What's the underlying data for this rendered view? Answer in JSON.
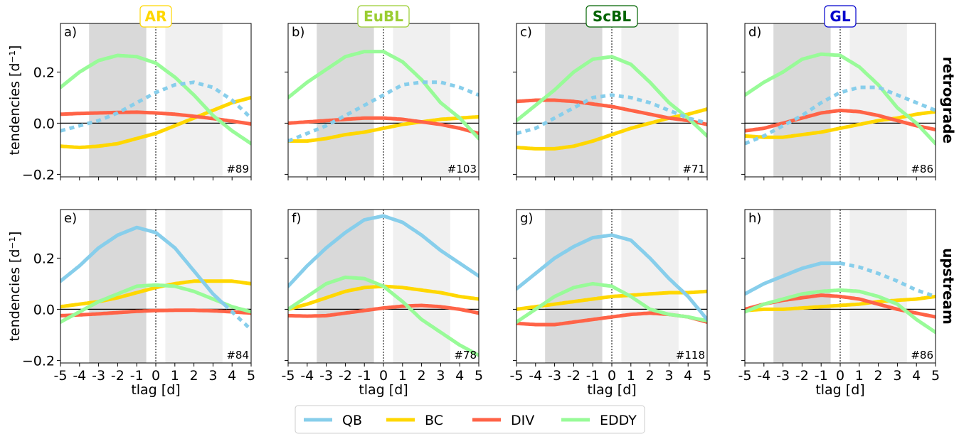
{
  "figure": {
    "ylabel": "tendencies [d⁻¹]",
    "xlabel": "tlag [d]",
    "row_labels": [
      "retrograde",
      "upstream"
    ]
  },
  "regimes": [
    {
      "name": "AR",
      "color": "#ffd700"
    },
    {
      "name": "EuBL",
      "color": "#9acd32"
    },
    {
      "name": "ScBL",
      "color": "#006400"
    },
    {
      "name": "GL",
      "color": "#0000cd"
    }
  ],
  "legend": [
    {
      "label": "QB",
      "color": "#87ceeb"
    },
    {
      "label": "BC",
      "color": "#ffd700"
    },
    {
      "label": "DIV",
      "color": "#ff6347"
    },
    {
      "label": "EDDY",
      "color": "#98fb98"
    }
  ],
  "chart_data": {
    "type": "line",
    "x": [
      -5,
      -4,
      -3,
      -2,
      -1,
      0,
      1,
      2,
      3,
      4,
      5
    ],
    "xlim": [
      -5,
      5
    ],
    "ylim": [
      -0.21,
      0.39
    ],
    "xticks": [
      "-5",
      "-4",
      "-3",
      "-2",
      "-1",
      "0",
      "1",
      "2",
      "3",
      "4",
      "5"
    ],
    "yticks": [
      "−0.2",
      "0.0",
      "0.2"
    ],
    "shading": [
      {
        "from": -3.5,
        "to": -0.5,
        "color": "#d9d9d9"
      },
      {
        "from": 0.5,
        "to": 3.5,
        "color": "#f0f0f0"
      }
    ],
    "series_order": [
      "QB",
      "BC",
      "DIV",
      "EDDY"
    ],
    "panels": [
      {
        "label": "a)",
        "count": "#89",
        "series": {
          "QB": [
            -0.03,
            -0.01,
            0.01,
            0.04,
            0.08,
            0.12,
            0.15,
            0.16,
            0.14,
            0.09,
            0.02
          ],
          "BC": [
            -0.09,
            -0.095,
            -0.09,
            -0.08,
            -0.06,
            -0.04,
            -0.01,
            0.02,
            0.05,
            0.08,
            0.1
          ],
          "DIV": [
            0.035,
            0.038,
            0.04,
            0.042,
            0.043,
            0.04,
            0.035,
            0.027,
            0.018,
            0.008,
            -0.003
          ],
          "EDDY": [
            0.14,
            0.2,
            0.245,
            0.265,
            0.26,
            0.235,
            0.18,
            0.11,
            0.03,
            -0.03,
            -0.08
          ]
        },
        "qb_dashed_from": -5
      },
      {
        "label": "b)",
        "count": "#103",
        "series": {
          "QB": [
            -0.07,
            -0.04,
            -0.01,
            0.03,
            0.07,
            0.11,
            0.15,
            0.16,
            0.16,
            0.14,
            0.11
          ],
          "BC": [
            -0.07,
            -0.07,
            -0.06,
            -0.045,
            -0.035,
            -0.02,
            -0.005,
            0.005,
            0.015,
            0.02,
            0.025
          ],
          "DIV": [
            0.0,
            0.005,
            0.01,
            0.015,
            0.02,
            0.02,
            0.015,
            0.005,
            -0.005,
            -0.02,
            -0.04
          ],
          "EDDY": [
            0.1,
            0.16,
            0.21,
            0.26,
            0.28,
            0.28,
            0.24,
            0.17,
            0.08,
            0.02,
            -0.06
          ]
        },
        "qb_dashed_from": -5
      },
      {
        "label": "c)",
        "count": "#71",
        "series": {
          "QB": [
            -0.04,
            -0.02,
            0.02,
            0.06,
            0.1,
            0.11,
            0.1,
            0.08,
            0.05,
            0.02,
            0.0
          ],
          "BC": [
            -0.095,
            -0.1,
            -0.1,
            -0.09,
            -0.07,
            -0.045,
            -0.02,
            0.0,
            0.02,
            0.035,
            0.055
          ],
          "DIV": [
            0.085,
            0.09,
            0.09,
            0.085,
            0.075,
            0.065,
            0.05,
            0.035,
            0.02,
            0.01,
            -0.005
          ],
          "EDDY": [
            0.01,
            0.07,
            0.13,
            0.2,
            0.25,
            0.26,
            0.23,
            0.16,
            0.08,
            0.02,
            -0.05
          ]
        },
        "qb_dashed_from": -5
      },
      {
        "label": "d)",
        "count": "#86",
        "series": {
          "QB": [
            -0.08,
            -0.05,
            -0.01,
            0.03,
            0.08,
            0.12,
            0.14,
            0.14,
            0.11,
            0.08,
            0.05
          ],
          "BC": [
            -0.05,
            -0.055,
            -0.055,
            -0.045,
            -0.035,
            -0.02,
            -0.005,
            0.01,
            0.02,
            0.035,
            0.045
          ],
          "DIV": [
            -0.03,
            -0.02,
            0.0,
            0.02,
            0.04,
            0.05,
            0.045,
            0.03,
            0.01,
            -0.01,
            -0.025
          ],
          "EDDY": [
            0.11,
            0.16,
            0.2,
            0.25,
            0.27,
            0.265,
            0.22,
            0.15,
            0.06,
            0.0,
            -0.08
          ]
        },
        "qb_dashed_from": -5
      },
      {
        "label": "e)",
        "count": "#84",
        "series": {
          "QB": [
            0.11,
            0.17,
            0.24,
            0.29,
            0.32,
            0.3,
            0.24,
            0.15,
            0.06,
            -0.01,
            -0.08
          ],
          "BC": [
            0.01,
            0.02,
            0.03,
            0.045,
            0.065,
            0.085,
            0.1,
            0.11,
            0.11,
            0.11,
            0.1
          ],
          "DIV": [
            -0.025,
            -0.022,
            -0.018,
            -0.013,
            -0.008,
            -0.005,
            -0.004,
            -0.004,
            -0.006,
            -0.01,
            -0.015
          ],
          "EDDY": [
            -0.05,
            -0.01,
            0.03,
            0.06,
            0.09,
            0.095,
            0.09,
            0.07,
            0.04,
            0.01,
            -0.01
          ],
          "qb_dashed_from": 3.6
        },
        "qb_dashed_from": 3.6
      },
      {
        "label": "f)",
        "count": "#78",
        "series": {
          "QB": [
            0.09,
            0.17,
            0.24,
            0.3,
            0.35,
            0.365,
            0.34,
            0.29,
            0.23,
            0.18,
            0.13
          ],
          "BC": [
            0.0,
            0.02,
            0.045,
            0.07,
            0.085,
            0.09,
            0.085,
            0.075,
            0.065,
            0.05,
            0.04
          ],
          "DIV": [
            -0.025,
            -0.027,
            -0.025,
            -0.015,
            -0.005,
            0.005,
            0.012,
            0.015,
            0.01,
            0.0,
            -0.015
          ],
          "EDDY": [
            0.0,
            0.05,
            0.1,
            0.125,
            0.12,
            0.09,
            0.03,
            -0.04,
            -0.09,
            -0.14,
            -0.18
          ]
        },
        "qb_dashed_from": 99
      },
      {
        "label": "g)",
        "count": "#118",
        "series": {
          "QB": [
            0.08,
            0.14,
            0.2,
            0.245,
            0.28,
            0.29,
            0.27,
            0.2,
            0.12,
            0.05,
            -0.04
          ],
          "BC": [
            0.0,
            0.01,
            0.02,
            0.03,
            0.04,
            0.05,
            0.055,
            0.06,
            0.065,
            0.065,
            0.07
          ],
          "DIV": [
            -0.055,
            -0.06,
            -0.06,
            -0.05,
            -0.04,
            -0.03,
            -0.02,
            -0.015,
            -0.02,
            -0.03,
            -0.05
          ],
          "EDDY": [
            -0.05,
            0.0,
            0.05,
            0.085,
            0.1,
            0.09,
            0.05,
            0.0,
            -0.02,
            -0.03,
            -0.045
          ]
        },
        "qb_dashed_from": 99
      },
      {
        "label": "h)",
        "count": "#86",
        "series": {
          "QB": [
            0.06,
            0.1,
            0.13,
            0.16,
            0.18,
            0.18,
            0.165,
            0.14,
            0.11,
            0.075,
            0.05
          ],
          "BC": [
            -0.005,
            0.0,
            0.0,
            0.005,
            0.01,
            0.015,
            0.02,
            0.03,
            0.035,
            0.04,
            0.05
          ],
          "DIV": [
            0.0,
            0.02,
            0.035,
            0.045,
            0.055,
            0.05,
            0.04,
            0.02,
            0.0,
            -0.015,
            -0.03
          ],
          "EDDY": [
            -0.01,
            0.02,
            0.04,
            0.06,
            0.07,
            0.075,
            0.07,
            0.05,
            0.02,
            -0.04,
            -0.09
          ]
        },
        "qb_dashed_from": 0
      }
    ]
  }
}
